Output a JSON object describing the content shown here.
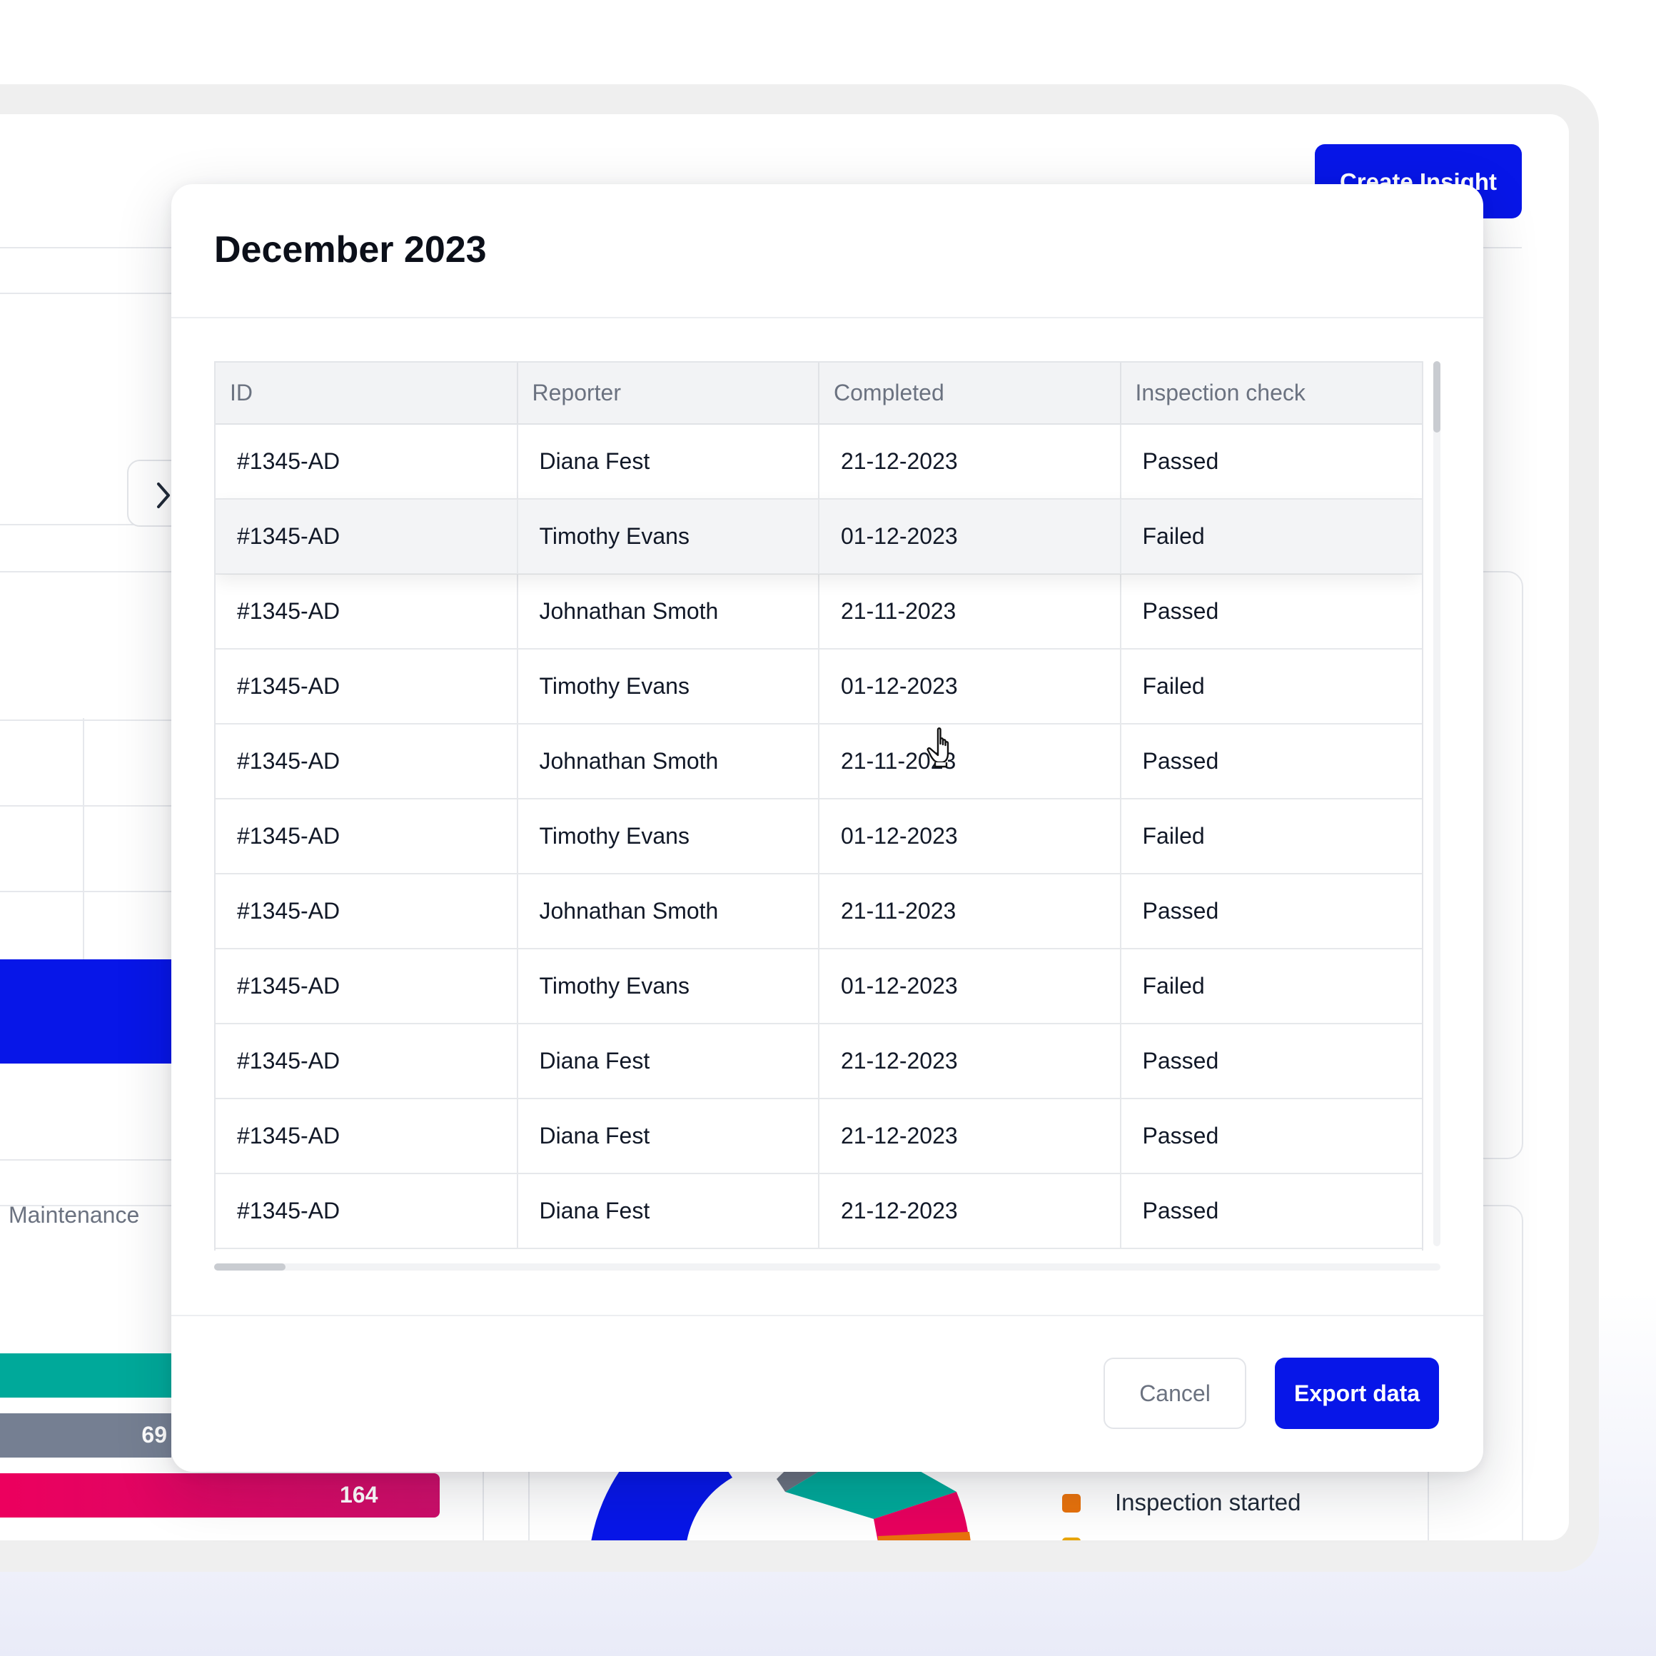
{
  "header": {
    "create_insight_label": "Create Insight"
  },
  "background": {
    "bar_category_label": "Maintenance",
    "bar_values": [
      "69",
      "164"
    ],
    "legend": [
      {
        "label": "Inspection started",
        "color": "#e8720c"
      }
    ]
  },
  "modal": {
    "title": "December 2023",
    "columns": [
      "ID",
      "Reporter",
      "Completed",
      "Inspection check"
    ],
    "rows": [
      {
        "id": "#1345-AD",
        "reporter": "Diana Fest",
        "completed": "21-12-2023",
        "check": "Passed"
      },
      {
        "id": "#1345-AD",
        "reporter": "Timothy Evans",
        "completed": "01-12-2023",
        "check": "Failed"
      },
      {
        "id": "#1345-AD",
        "reporter": "Johnathan Smoth",
        "completed": "21-11-2023",
        "check": "Passed"
      },
      {
        "id": "#1345-AD",
        "reporter": "Timothy Evans",
        "completed": "01-12-2023",
        "check": "Failed"
      },
      {
        "id": "#1345-AD",
        "reporter": "Johnathan Smoth",
        "completed": "21-11-2023",
        "check": "Passed"
      },
      {
        "id": "#1345-AD",
        "reporter": "Timothy Evans",
        "completed": "01-12-2023",
        "check": "Failed"
      },
      {
        "id": "#1345-AD",
        "reporter": "Johnathan Smoth",
        "completed": "21-11-2023",
        "check": "Passed"
      },
      {
        "id": "#1345-AD",
        "reporter": "Timothy Evans",
        "completed": "01-12-2023",
        "check": "Failed"
      },
      {
        "id": "#1345-AD",
        "reporter": "Diana Fest",
        "completed": "21-12-2023",
        "check": "Passed"
      },
      {
        "id": "#1345-AD",
        "reporter": "Diana Fest",
        "completed": "21-12-2023",
        "check": "Passed"
      },
      {
        "id": "#1345-AD",
        "reporter": "Diana Fest",
        "completed": "21-12-2023",
        "check": "Passed"
      }
    ],
    "cancel_label": "Cancel",
    "export_label": "Export data"
  },
  "colors": {
    "accent": "#0716e8",
    "teal": "#00a99a",
    "slate": "#757f92",
    "pink": "#e8005e"
  }
}
